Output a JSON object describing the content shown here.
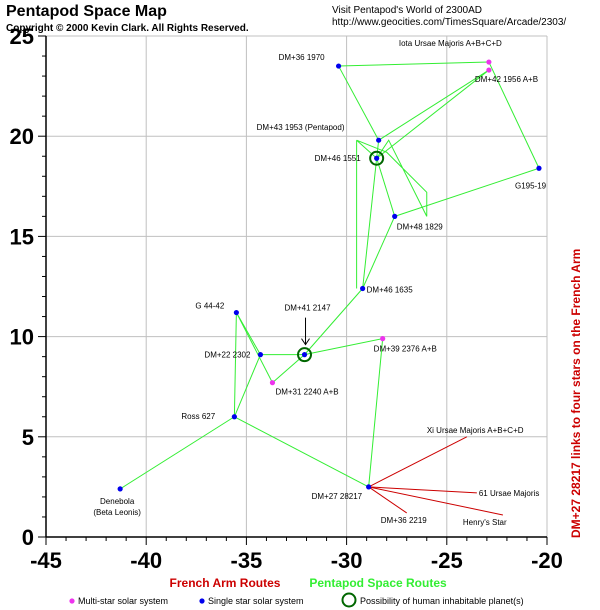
{
  "header": {
    "title": "Pentapod Space Map",
    "copyright": "Copyright © 2000 Kevin Clark.  All Rights Reserved.",
    "visit_line1": "Visit Pentapod's World of 2300AD",
    "visit_line2": "http://www.geocities.com/TimesSquare/Arcade/2303/"
  },
  "colors": {
    "multi": "#ee33ee",
    "single": "#0000ee",
    "french": "#cc0000",
    "pentapod": "#33ee33",
    "grid": "#c0c0c0",
    "habitable": "#006600"
  },
  "legend": {
    "french_routes": "French Arm Routes",
    "pentapod_routes": "Pentapod Space Routes",
    "multi": "Multi-star solar system",
    "single": "Single star solar system",
    "habitable": "Possibility of human inhabitable planet(s)"
  },
  "side_note": "DM+27 28217 links to four stars on the French Arm",
  "chart_data": {
    "type": "scatter",
    "title": "Pentapod Space Map",
    "xlim": [
      -45,
      -20
    ],
    "ylim": [
      0,
      25
    ],
    "x_ticks": [
      -45,
      -40,
      -35,
      -30,
      -25,
      -20
    ],
    "y_ticks": [
      0,
      5,
      10,
      15,
      20,
      25
    ],
    "x_tick_labels": [
      "-45",
      "-40",
      "-35",
      "-30",
      "-25",
      "-20"
    ],
    "y_tick_labels": [
      "0",
      "5",
      "10",
      "15",
      "20",
      "25"
    ],
    "grid": true,
    "stars": [
      {
        "id": "iota",
        "name": "Iota Ursae Majoris A+B+C+D",
        "x": -22.9,
        "y": 23.7,
        "kind": "multi",
        "habitable": false
      },
      {
        "id": "dm42",
        "name": "DM+42 1956 A+B",
        "x": -22.9,
        "y": 23.3,
        "kind": "multi",
        "habitable": false
      },
      {
        "id": "dm36_1970",
        "name": "DM+36 1970",
        "x": -30.4,
        "y": 23.5,
        "kind": "single",
        "habitable": false
      },
      {
        "id": "dm43",
        "name": "DM+43 1953 (Pentapod)",
        "x": -28.4,
        "y": 19.8,
        "kind": "single",
        "habitable": false
      },
      {
        "id": "dm46_1551",
        "name": "DM+46 1551",
        "x": -28.5,
        "y": 18.9,
        "kind": "single",
        "habitable": true
      },
      {
        "id": "g195",
        "name": "G195-19",
        "x": -20.4,
        "y": 18.4,
        "kind": "single",
        "habitable": false
      },
      {
        "id": "dm48",
        "name": "DM+48 1829",
        "x": -27.6,
        "y": 16.0,
        "kind": "single",
        "habitable": false
      },
      {
        "id": "dm46_1635",
        "name": "DM+46 1635",
        "x": -29.2,
        "y": 12.4,
        "kind": "single",
        "habitable": false
      },
      {
        "id": "g44",
        "name": "G 44-42",
        "x": -35.5,
        "y": 11.2,
        "kind": "single",
        "habitable": false
      },
      {
        "id": "dm41",
        "name": "DM+41 2147",
        "x": -32.1,
        "y": 9.1,
        "kind": "single",
        "habitable": true
      },
      {
        "id": "dm39",
        "name": "DM+39 2376 A+B",
        "x": -28.2,
        "y": 9.9,
        "kind": "multi",
        "habitable": false
      },
      {
        "id": "dm22",
        "name": "DM+22 2302",
        "x": -34.3,
        "y": 9.1,
        "kind": "single",
        "habitable": false
      },
      {
        "id": "dm31",
        "name": "DM+31 2240 A+B",
        "x": -33.7,
        "y": 7.7,
        "kind": "multi",
        "habitable": false
      },
      {
        "id": "ross",
        "name": "Ross 627",
        "x": -35.6,
        "y": 6.0,
        "kind": "single",
        "habitable": false
      },
      {
        "id": "denebola",
        "name": "Denebola",
        "name2": "(Beta Leonis)",
        "x": -41.3,
        "y": 2.4,
        "kind": "single",
        "habitable": false
      },
      {
        "id": "dm27",
        "name": "DM+27 28217",
        "x": -28.9,
        "y": 2.5,
        "kind": "single",
        "habitable": false
      }
    ],
    "pentapod_routes": [
      [
        "dm36_1970",
        "iota"
      ],
      [
        "iota",
        "g195"
      ],
      [
        "g195",
        "dm48"
      ],
      [
        "dm36_1970",
        "dm43"
      ],
      [
        "dm43",
        "dm42"
      ],
      [
        "dm42",
        "dm46_1551"
      ],
      [
        "dm43",
        "dm46_1551"
      ],
      [
        "dm46_1551",
        "dm48"
      ],
      [
        "dm46_1551",
        "dm46_1635"
      ],
      [
        "dm48",
        "dm46_1635"
      ],
      [
        "dm46_1635",
        "dm41"
      ],
      [
        "dm41",
        "dm39"
      ],
      [
        "dm41",
        "dm22"
      ],
      [
        "dm41",
        "dm31"
      ],
      [
        "dm22",
        "g44"
      ],
      [
        "g44",
        "dm31"
      ],
      [
        "dm22",
        "ross"
      ],
      [
        "g44",
        "ross"
      ],
      [
        "ross",
        "denebola"
      ],
      [
        "ross",
        "dm27"
      ],
      [
        "dm27",
        "dm39"
      ]
    ],
    "pentapod_polylines": [
      [
        [
          -29.5,
          19.8
        ],
        [
          -28.5,
          18.9
        ],
        [
          -27.9,
          19.8
        ],
        [
          -26.0,
          16.0
        ],
        [
          -26.0,
          17.2
        ],
        [
          -28.0,
          19.2
        ],
        [
          -29.5,
          19.8
        ]
      ],
      [
        [
          -29.5,
          19.8
        ],
        [
          -29.5,
          12.4
        ]
      ]
    ],
    "french_routes": [
      {
        "from": "dm27",
        "to_name": "Xi Ursae Majoris A+B+C+D",
        "to": [
          -24.0,
          5.0
        ]
      },
      {
        "from": "dm27",
        "to_name": "61 Ursae Majoris",
        "to": [
          -23.5,
          2.2
        ]
      },
      {
        "from": "dm27",
        "to_name": "DM+36 2219",
        "to": [
          -27.0,
          1.2
        ]
      },
      {
        "from": "dm27",
        "to_name": "Henry's Star",
        "to": [
          -22.2,
          1.1
        ]
      }
    ],
    "annotation": {
      "text": "DM+41 2147",
      "points_to": "dm41"
    }
  }
}
